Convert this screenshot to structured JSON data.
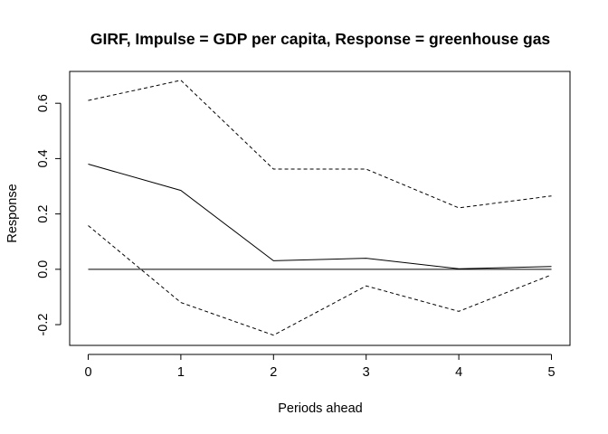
{
  "chart_data": {
    "type": "line",
    "title": "GIRF, Impulse = GDP per capita, Response = greenhouse gas",
    "xlabel": "Periods ahead",
    "ylabel": "Response",
    "x": [
      0,
      1,
      2,
      3,
      4,
      5
    ],
    "xticks": [
      "0",
      "1",
      "2",
      "3",
      "4",
      "5"
    ],
    "yticks": [
      "-0.2",
      "0.0",
      "0.2",
      "0.4",
      "0.6"
    ],
    "ylim": [
      -0.275,
      0.715
    ],
    "xlim": [
      -0.2,
      5.2
    ],
    "grid": false,
    "reference_line": 0.0,
    "series": [
      {
        "role": "response",
        "style": "solid",
        "values": [
          0.38,
          0.285,
          0.031,
          0.04,
          0.002,
          0.01
        ]
      },
      {
        "role": "upper-band",
        "style": "dashed",
        "values": [
          0.61,
          0.683,
          0.362,
          0.362,
          0.222,
          0.265
        ]
      },
      {
        "role": "lower-band",
        "style": "dashed",
        "values": [
          0.158,
          -0.12,
          -0.238,
          -0.06,
          -0.152,
          -0.02
        ]
      }
    ]
  }
}
